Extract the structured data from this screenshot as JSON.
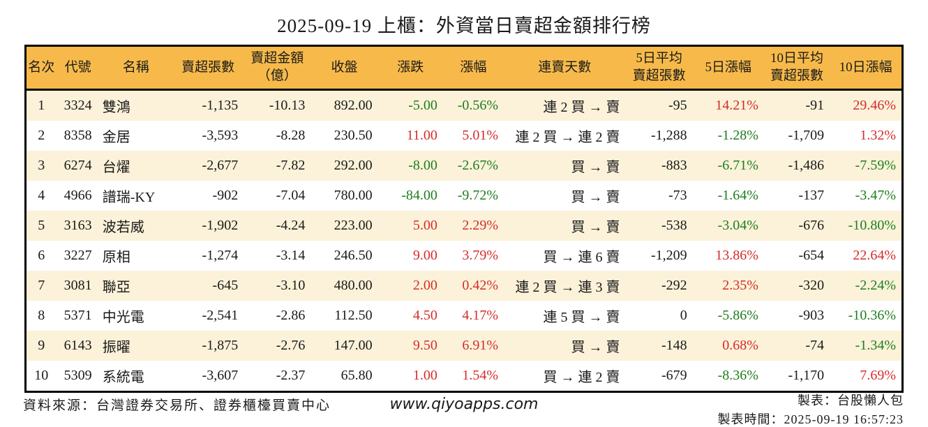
{
  "title": "2025-09-19 上櫃：外資當日賣超金額排行榜",
  "colors": {
    "header_bg": "#F7BA4A",
    "row_alt_bg": "#FBF2D9",
    "up_red": "#D62B2B",
    "down_green": "#1E7D1E",
    "border": "#000000"
  },
  "table": {
    "headers": [
      "名次",
      "代號",
      "名稱",
      "賣超張數",
      "賣超金額\n（億）",
      "收盤",
      "漲跌",
      "漲幅",
      "連賣天數",
      "5日平均\n賣超張數",
      "5日漲幅",
      "10日平均\n賣超張數",
      "10日漲幅"
    ],
    "rows": [
      {
        "rank": "1",
        "code": "3324",
        "name": "雙鴻",
        "net_sell": "-1,135",
        "amount": "-10.13",
        "close": "892.00",
        "change": "-5.00",
        "pct": "-0.56%",
        "dir": "down",
        "streak": "連 2 買 → 賣",
        "avg5": "-95",
        "pct5": "14.21%",
        "dir5": "up",
        "avg10": "-91",
        "pct10": "29.46%",
        "dir10": "up"
      },
      {
        "rank": "2",
        "code": "8358",
        "name": "金居",
        "net_sell": "-3,593",
        "amount": "-8.28",
        "close": "230.50",
        "change": "11.00",
        "pct": "5.01%",
        "dir": "up",
        "streak": "連 2 買 → 連 2 賣",
        "avg5": "-1,288",
        "pct5": "-1.28%",
        "dir5": "down",
        "avg10": "-1,709",
        "pct10": "1.32%",
        "dir10": "up"
      },
      {
        "rank": "3",
        "code": "6274",
        "name": "台燿",
        "net_sell": "-2,677",
        "amount": "-7.82",
        "close": "292.00",
        "change": "-8.00",
        "pct": "-2.67%",
        "dir": "down",
        "streak": "買 → 賣",
        "avg5": "-883",
        "pct5": "-6.71%",
        "dir5": "down",
        "avg10": "-1,486",
        "pct10": "-7.59%",
        "dir10": "down"
      },
      {
        "rank": "4",
        "code": "4966",
        "name": "譜瑞-KY",
        "net_sell": "-902",
        "amount": "-7.04",
        "close": "780.00",
        "change": "-84.00",
        "pct": "-9.72%",
        "dir": "down",
        "streak": "買 → 賣",
        "avg5": "-73",
        "pct5": "-1.64%",
        "dir5": "down",
        "avg10": "-137",
        "pct10": "-3.47%",
        "dir10": "down"
      },
      {
        "rank": "5",
        "code": "3163",
        "name": "波若威",
        "net_sell": "-1,902",
        "amount": "-4.24",
        "close": "223.00",
        "change": "5.00",
        "pct": "2.29%",
        "dir": "up",
        "streak": "買 → 賣",
        "avg5": "-538",
        "pct5": "-3.04%",
        "dir5": "down",
        "avg10": "-676",
        "pct10": "-10.80%",
        "dir10": "down"
      },
      {
        "rank": "6",
        "code": "3227",
        "name": "原相",
        "net_sell": "-1,274",
        "amount": "-3.14",
        "close": "246.50",
        "change": "9.00",
        "pct": "3.79%",
        "dir": "up",
        "streak": "買 → 連 6 賣",
        "avg5": "-1,209",
        "pct5": "13.86%",
        "dir5": "up",
        "avg10": "-654",
        "pct10": "22.64%",
        "dir10": "up"
      },
      {
        "rank": "7",
        "code": "3081",
        "name": "聯亞",
        "net_sell": "-645",
        "amount": "-3.10",
        "close": "480.00",
        "change": "2.00",
        "pct": "0.42%",
        "dir": "up",
        "streak": "連 2 買 → 連 3 賣",
        "avg5": "-292",
        "pct5": "2.35%",
        "dir5": "up",
        "avg10": "-320",
        "pct10": "-2.24%",
        "dir10": "down"
      },
      {
        "rank": "8",
        "code": "5371",
        "name": "中光電",
        "net_sell": "-2,541",
        "amount": "-2.86",
        "close": "112.50",
        "change": "4.50",
        "pct": "4.17%",
        "dir": "up",
        "streak": "連 5 買 → 賣",
        "avg5": "0",
        "pct5": "-5.86%",
        "dir5": "down",
        "avg10": "-903",
        "pct10": "-10.36%",
        "dir10": "down"
      },
      {
        "rank": "9",
        "code": "6143",
        "name": "振曜",
        "net_sell": "-1,875",
        "amount": "-2.76",
        "close": "147.00",
        "change": "9.50",
        "pct": "6.91%",
        "dir": "up",
        "streak": "買 → 賣",
        "avg5": "-148",
        "pct5": "0.68%",
        "dir5": "up",
        "avg10": "-74",
        "pct10": "-1.34%",
        "dir10": "down"
      },
      {
        "rank": "10",
        "code": "5309",
        "name": "系統電",
        "net_sell": "-3,607",
        "amount": "-2.37",
        "close": "65.80",
        "change": "1.00",
        "pct": "1.54%",
        "dir": "up",
        "streak": "買 → 連 2 賣",
        "avg5": "-679",
        "pct5": "-8.36%",
        "dir5": "down",
        "avg10": "-1,170",
        "pct10": "7.69%",
        "dir10": "up"
      }
    ]
  },
  "footer": {
    "source": "資料來源：台灣證券交易所、證券櫃檯買賣中心",
    "website": "www.qiyoapps.com",
    "maker": "製表：台股懶人包",
    "made_at": "製表時間：2025-09-19 16:57:23"
  }
}
